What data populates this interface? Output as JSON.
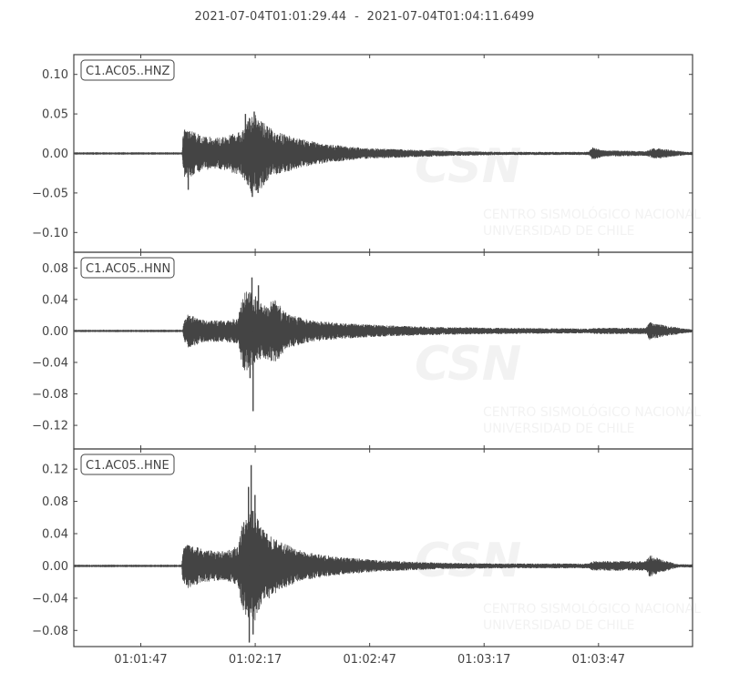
{
  "chart_data": {
    "type": "line",
    "title": {
      "start": "2021-07-04T01:01:29.44",
      "separator": "-",
      "end": "2021-07-04T01:04:11.6499"
    },
    "xlabel": "",
    "x_range_seconds": [
      0,
      162.21
    ],
    "x_ticks": [
      {
        "t": 17.56,
        "label": "01:01:47"
      },
      {
        "t": 47.56,
        "label": "01:02:17"
      },
      {
        "t": 77.56,
        "label": "01:02:47"
      },
      {
        "t": 107.56,
        "label": "01:03:17"
      },
      {
        "t": 137.56,
        "label": "01:03:47"
      }
    ],
    "watermark": {
      "logo": "CSN",
      "line1": "CENTRO SISMOLÓGICO NACIONAL",
      "line2": "UNIVERSIDAD DE CHILE"
    },
    "series": [
      {
        "name": "C1.AC05..HNZ",
        "ylim": [
          -0.125,
          0.125
        ],
        "yticks": [
          0.1,
          0.05,
          0.0,
          -0.05,
          -0.1
        ],
        "ytick_labels": [
          "0.10",
          "0.05",
          "0.00",
          "−0.05",
          "−0.10"
        ],
        "envelope": [
          {
            "t": 0,
            "v": 0.0003
          },
          {
            "t": 28.4,
            "v": 0.0003
          },
          {
            "t": 28.6,
            "v": 0.025
          },
          {
            "t": 29.5,
            "v": 0.035
          },
          {
            "t": 31,
            "v": 0.028
          },
          {
            "t": 34,
            "v": 0.022
          },
          {
            "t": 38,
            "v": 0.02
          },
          {
            "t": 44,
            "v": 0.028
          },
          {
            "t": 46.5,
            "v": 0.05
          },
          {
            "t": 48,
            "v": 0.05
          },
          {
            "t": 52,
            "v": 0.03
          },
          {
            "t": 58,
            "v": 0.02
          },
          {
            "t": 66,
            "v": 0.012
          },
          {
            "t": 76,
            "v": 0.007
          },
          {
            "t": 88,
            "v": 0.005
          },
          {
            "t": 100,
            "v": 0.003
          },
          {
            "t": 112,
            "v": 0.002
          },
          {
            "t": 128,
            "v": 0.002
          },
          {
            "t": 135,
            "v": 0.002
          },
          {
            "t": 136,
            "v": 0.008
          },
          {
            "t": 139,
            "v": 0.004
          },
          {
            "t": 150,
            "v": 0.003
          },
          {
            "t": 152,
            "v": 0.007
          },
          {
            "t": 156,
            "v": 0.005
          },
          {
            "t": 160.5,
            "v": 0.002
          }
        ],
        "peaks": [
          {
            "t": 30.0,
            "v": -0.046
          },
          {
            "t": 45.0,
            "v": 0.05
          },
          {
            "t": 47.3,
            "v": 0.053
          },
          {
            "t": 46.8,
            "v": -0.055
          },
          {
            "t": 48.3,
            "v": -0.05
          }
        ]
      },
      {
        "name": "C1.AC05..HNN",
        "ylim": [
          -0.15,
          0.1
        ],
        "yticks": [
          0.08,
          0.04,
          0.0,
          -0.04,
          -0.08,
          -0.12
        ],
        "ytick_labels": [
          "0.08",
          "0.04",
          "0.00",
          "−0.04",
          "−0.08",
          "−0.12"
        ],
        "envelope": [
          {
            "t": 0,
            "v": 0.0003
          },
          {
            "t": 28.6,
            "v": 0.0003
          },
          {
            "t": 28.8,
            "v": 0.012
          },
          {
            "t": 30,
            "v": 0.022
          },
          {
            "t": 34,
            "v": 0.014
          },
          {
            "t": 40,
            "v": 0.014
          },
          {
            "t": 43,
            "v": 0.016
          },
          {
            "t": 44.5,
            "v": 0.05
          },
          {
            "t": 47,
            "v": 0.05
          },
          {
            "t": 49,
            "v": 0.035
          },
          {
            "t": 53,
            "v": 0.04
          },
          {
            "t": 56,
            "v": 0.022
          },
          {
            "t": 62,
            "v": 0.014
          },
          {
            "t": 70,
            "v": 0.01
          },
          {
            "t": 82,
            "v": 0.007
          },
          {
            "t": 96,
            "v": 0.005
          },
          {
            "t": 110,
            "v": 0.004
          },
          {
            "t": 135,
            "v": 0.003
          },
          {
            "t": 137,
            "v": 0.004
          },
          {
            "t": 150,
            "v": 0.004
          },
          {
            "t": 151,
            "v": 0.012
          },
          {
            "t": 154,
            "v": 0.008
          },
          {
            "t": 160,
            "v": 0.003
          },
          {
            "t": 162,
            "v": 0.002
          }
        ],
        "peaks": [
          {
            "t": 46.7,
            "v": 0.068
          },
          {
            "t": 47.0,
            "v": -0.102
          },
          {
            "t": 46.2,
            "v": -0.06
          },
          {
            "t": 48.4,
            "v": 0.058
          }
        ]
      },
      {
        "name": "C1.AC05..HNE",
        "ylim": [
          -0.1,
          0.145
        ],
        "yticks": [
          0.12,
          0.08,
          0.04,
          0.0,
          -0.04,
          -0.08
        ],
        "ytick_labels": [
          "0.12",
          "0.08",
          "0.04",
          "0.00",
          "−0.04",
          "−0.08"
        ],
        "envelope": [
          {
            "t": 0,
            "v": 0.0003
          },
          {
            "t": 28.3,
            "v": 0.0003
          },
          {
            "t": 28.5,
            "v": 0.02
          },
          {
            "t": 30,
            "v": 0.028
          },
          {
            "t": 34,
            "v": 0.02
          },
          {
            "t": 40,
            "v": 0.018
          },
          {
            "t": 43,
            "v": 0.026
          },
          {
            "t": 44.5,
            "v": 0.06
          },
          {
            "t": 47,
            "v": 0.075
          },
          {
            "t": 50,
            "v": 0.045
          },
          {
            "t": 54,
            "v": 0.03
          },
          {
            "t": 60,
            "v": 0.018
          },
          {
            "t": 68,
            "v": 0.012
          },
          {
            "t": 80,
            "v": 0.007
          },
          {
            "t": 96,
            "v": 0.004
          },
          {
            "t": 112,
            "v": 0.003
          },
          {
            "t": 135,
            "v": 0.003
          },
          {
            "t": 136,
            "v": 0.006
          },
          {
            "t": 150,
            "v": 0.006
          },
          {
            "t": 151,
            "v": 0.014
          },
          {
            "t": 154,
            "v": 0.008
          },
          {
            "t": 158.5,
            "v": 0.002
          }
        ],
        "peaks": [
          {
            "t": 46.5,
            "v": 0.125
          },
          {
            "t": 45.8,
            "v": 0.098
          },
          {
            "t": 47.5,
            "v": 0.088
          },
          {
            "t": 46.0,
            "v": -0.095
          },
          {
            "t": 47.0,
            "v": -0.085
          }
        ]
      }
    ]
  }
}
